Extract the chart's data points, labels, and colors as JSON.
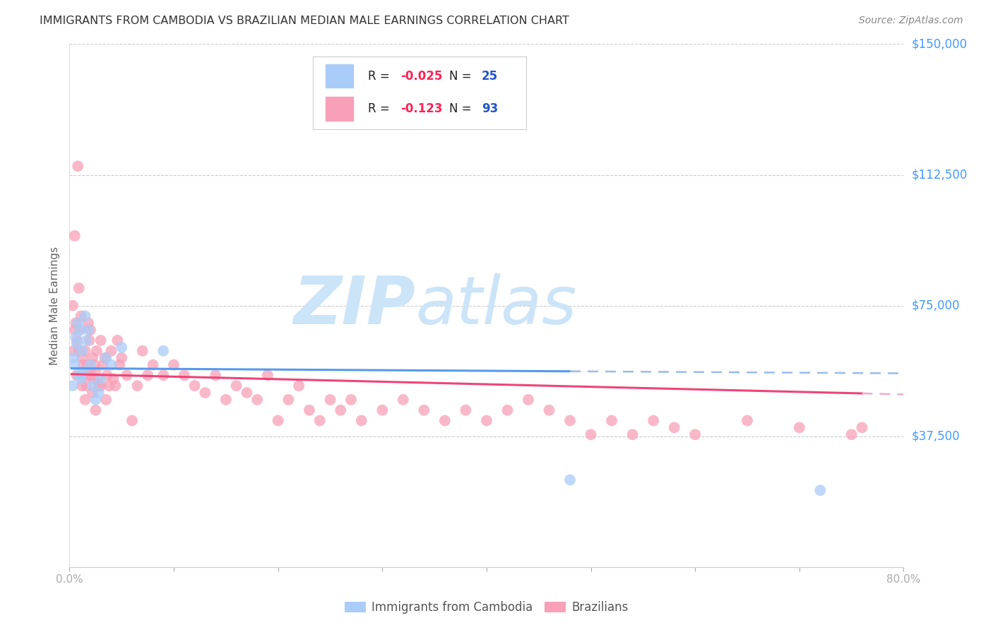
{
  "title": "IMMIGRANTS FROM CAMBODIA VS BRAZILIAN MEDIAN MALE EARNINGS CORRELATION CHART",
  "source": "Source: ZipAtlas.com",
  "ylabel": "Median Male Earnings",
  "xlim": [
    0.0,
    0.8
  ],
  "ylim": [
    0,
    150000
  ],
  "yticks": [
    37500,
    75000,
    112500,
    150000
  ],
  "ytick_labels": [
    "$37,500",
    "$75,000",
    "$112,500",
    "$150,000"
  ],
  "xticks": [
    0.0,
    0.1,
    0.2,
    0.3,
    0.4,
    0.5,
    0.6,
    0.7,
    0.8
  ],
  "xtick_labels": [
    "0.0%",
    "",
    "",
    "",
    "",
    "",
    "",
    "",
    "80.0%"
  ],
  "cambodia_color": "#aaccf8",
  "brazil_color": "#f8a0b8",
  "cambodia_line_color": "#5599ee",
  "cambodia_dash_color": "#99bbee",
  "brazil_line_color": "#ee4477",
  "brazil_dash_color": "#f0aacc",
  "background_color": "#ffffff",
  "grid_color": "#cccccc",
  "title_color": "#333333",
  "axis_label_color": "#666666",
  "right_tick_color": "#4499ff",
  "watermark_zip": "ZIP",
  "watermark_atlas": "atlas",
  "watermark_color": "#cce4f8",
  "legend_R_color": "#ff3366",
  "legend_N_color": "#3366cc",
  "cambodia_x": [
    0.003,
    0.004,
    0.005,
    0.006,
    0.007,
    0.008,
    0.009,
    0.01,
    0.011,
    0.012,
    0.013,
    0.015,
    0.016,
    0.018,
    0.02,
    0.022,
    0.025,
    0.028,
    0.03,
    0.035,
    0.04,
    0.05,
    0.09,
    0.48,
    0.72
  ],
  "cambodia_y": [
    52000,
    60000,
    58000,
    66000,
    64000,
    70000,
    55000,
    68000,
    54000,
    62000,
    56000,
    72000,
    65000,
    68000,
    58000,
    52000,
    48000,
    50000,
    54000,
    60000,
    58000,
    63000,
    62000,
    25000,
    22000
  ],
  "brazil_x": [
    0.003,
    0.004,
    0.005,
    0.006,
    0.007,
    0.008,
    0.009,
    0.01,
    0.011,
    0.012,
    0.013,
    0.014,
    0.015,
    0.016,
    0.017,
    0.018,
    0.019,
    0.02,
    0.021,
    0.022,
    0.023,
    0.024,
    0.025,
    0.026,
    0.027,
    0.028,
    0.03,
    0.032,
    0.034,
    0.036,
    0.038,
    0.04,
    0.042,
    0.044,
    0.046,
    0.048,
    0.05,
    0.055,
    0.06,
    0.065,
    0.07,
    0.075,
    0.08,
    0.09,
    0.1,
    0.11,
    0.12,
    0.13,
    0.14,
    0.15,
    0.16,
    0.17,
    0.18,
    0.19,
    0.2,
    0.21,
    0.22,
    0.23,
    0.24,
    0.25,
    0.26,
    0.27,
    0.28,
    0.3,
    0.32,
    0.34,
    0.36,
    0.38,
    0.4,
    0.42,
    0.44,
    0.46,
    0.48,
    0.5,
    0.52,
    0.54,
    0.56,
    0.58,
    0.6,
    0.65,
    0.7,
    0.75,
    0.76,
    0.005,
    0.007,
    0.009,
    0.012,
    0.015,
    0.018,
    0.022,
    0.025,
    0.03,
    0.035
  ],
  "brazil_y": [
    75000,
    62000,
    95000,
    70000,
    65000,
    115000,
    80000,
    68000,
    72000,
    60000,
    58000,
    55000,
    62000,
    52000,
    58000,
    70000,
    65000,
    68000,
    55000,
    60000,
    54000,
    58000,
    56000,
    62000,
    54000,
    52000,
    65000,
    58000,
    60000,
    55000,
    52000,
    62000,
    54000,
    52000,
    65000,
    58000,
    60000,
    55000,
    42000,
    52000,
    62000,
    55000,
    58000,
    55000,
    58000,
    55000,
    52000,
    50000,
    55000,
    48000,
    52000,
    50000,
    48000,
    55000,
    42000,
    48000,
    52000,
    45000,
    42000,
    48000,
    45000,
    48000,
    42000,
    45000,
    48000,
    45000,
    42000,
    45000,
    42000,
    45000,
    48000,
    45000,
    42000,
    38000,
    42000,
    38000,
    42000,
    40000,
    38000,
    42000,
    40000,
    38000,
    40000,
    68000,
    55000,
    62000,
    52000,
    48000,
    55000,
    50000,
    45000,
    52000,
    48000
  ]
}
